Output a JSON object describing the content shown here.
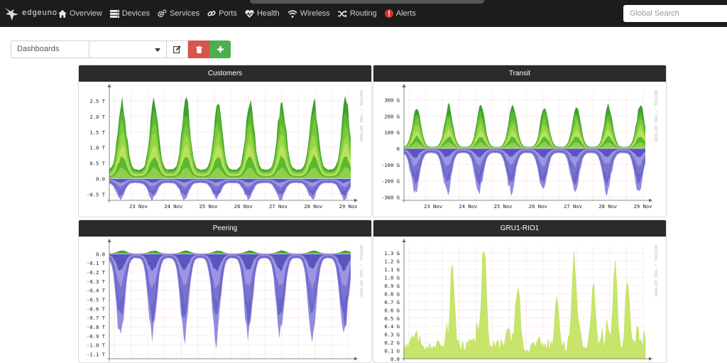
{
  "app": {
    "logo_text": "edgeuno"
  },
  "nav": {
    "items": [
      {
        "label": "Overview",
        "icon": "home-icon"
      },
      {
        "label": "Devices",
        "icon": "server-icon"
      },
      {
        "label": "Services",
        "icon": "cogs-icon"
      },
      {
        "label": "Ports",
        "icon": "link-icon"
      },
      {
        "label": "Health",
        "icon": "heartbeat-icon"
      },
      {
        "label": "Wireless",
        "icon": "wifi-icon"
      },
      {
        "label": "Routing",
        "icon": "random-icon"
      },
      {
        "label": "Alerts",
        "icon": "exclamation-circle-icon"
      }
    ],
    "search_placeholder": "Global Search"
  },
  "toolbar": {
    "dashboards_label": "Dashboards",
    "selected_dashboard": ""
  },
  "colors": {
    "navbar": "#1c1c1c",
    "in_traffic": "#5cb82e",
    "out_traffic": "#6a62c8",
    "delete": "#d9534f",
    "add": "#4cae4c"
  },
  "widgets": [
    {
      "title": "Customers",
      "watermark": "RRDTOOL / TOBI OETIKER"
    },
    {
      "title": "Transit",
      "watermark": "RRDTOOL / TOBI OETIKER"
    },
    {
      "title": "Peering",
      "watermark": "RRDTOOL / TOBI OETIKER"
    },
    {
      "title": "GRU1-RIO1",
      "watermark": "RRDTOOL / TOBI OETIKER"
    }
  ],
  "chart_data": [
    {
      "type": "area",
      "title": "Customers",
      "x": [
        "23 Nov",
        "24 Nov",
        "25 Nov",
        "26 Nov",
        "27 Nov",
        "28 Nov",
        "29 Nov"
      ],
      "y_ticks": [
        "2.5 T",
        "2.0 T",
        "1.5 T",
        "1.0 T",
        "0.5 T",
        "0.0",
        "-0.5 T"
      ],
      "ylim": [
        -0.7,
        2.8
      ],
      "series": [
        {
          "peak": 2.8,
          "trough": 0.3
        },
        {
          "peak": -0.75,
          "trough": -0.15
        }
      ],
      "grid": true
    },
    {
      "type": "area",
      "title": "Transit",
      "x": [
        "23 Nov",
        "24 Nov",
        "25 Nov",
        "26 Nov",
        "27 Nov",
        "28 Nov",
        "29 Nov"
      ],
      "y_ticks": [
        "300 G",
        "200 G",
        "100 G",
        "0",
        "-100 G",
        "-200 G",
        "-300 G"
      ],
      "ylim": [
        -320,
        350
      ],
      "series": [
        {
          "peak": 290,
          "trough": 10
        },
        {
          "peak": -310,
          "trough": -30
        }
      ],
      "grid": true
    },
    {
      "type": "area",
      "title": "Peering",
      "x": [
        "23 Nov",
        "24 Nov",
        "25 Nov",
        "26 Nov",
        "27 Nov",
        "28 Nov",
        "29 Nov"
      ],
      "y_ticks": [
        "0.0",
        "-0.1 T",
        "-0.2 T",
        "-0.3 T",
        "-0.4 T",
        "-0.5 T",
        "-0.6 T",
        "-0.7 T",
        "-0.8 T",
        "-0.9 T",
        "-1.0 T",
        "-1.1 T"
      ],
      "ylim": [
        -1.15,
        0.08
      ],
      "series": [
        {
          "peak": 0.04,
          "trough": 0.005
        },
        {
          "peak": -1.05,
          "trough": -0.05
        }
      ],
      "grid": true
    },
    {
      "type": "area",
      "title": "GRU1-RIO1",
      "x": [
        "23 Nov",
        "24 Nov",
        "25 Nov",
        "26 Nov",
        "27 Nov",
        "28 Nov",
        "29 Nov"
      ],
      "y_ticks": [
        "1.3 G",
        "1.2 G",
        "1.1 G",
        "1.0 G",
        "0.9 G",
        "0.8 G",
        "0.7 G",
        "0.6 G",
        "0.5 G",
        "0.4 G",
        "0.3 G",
        "0.2 G",
        "0.1 G",
        "0.0"
      ],
      "ylim": [
        0,
        1.38
      ],
      "series": [
        {
          "peak": 1.3,
          "trough": 0.05
        }
      ],
      "grid": true
    }
  ]
}
